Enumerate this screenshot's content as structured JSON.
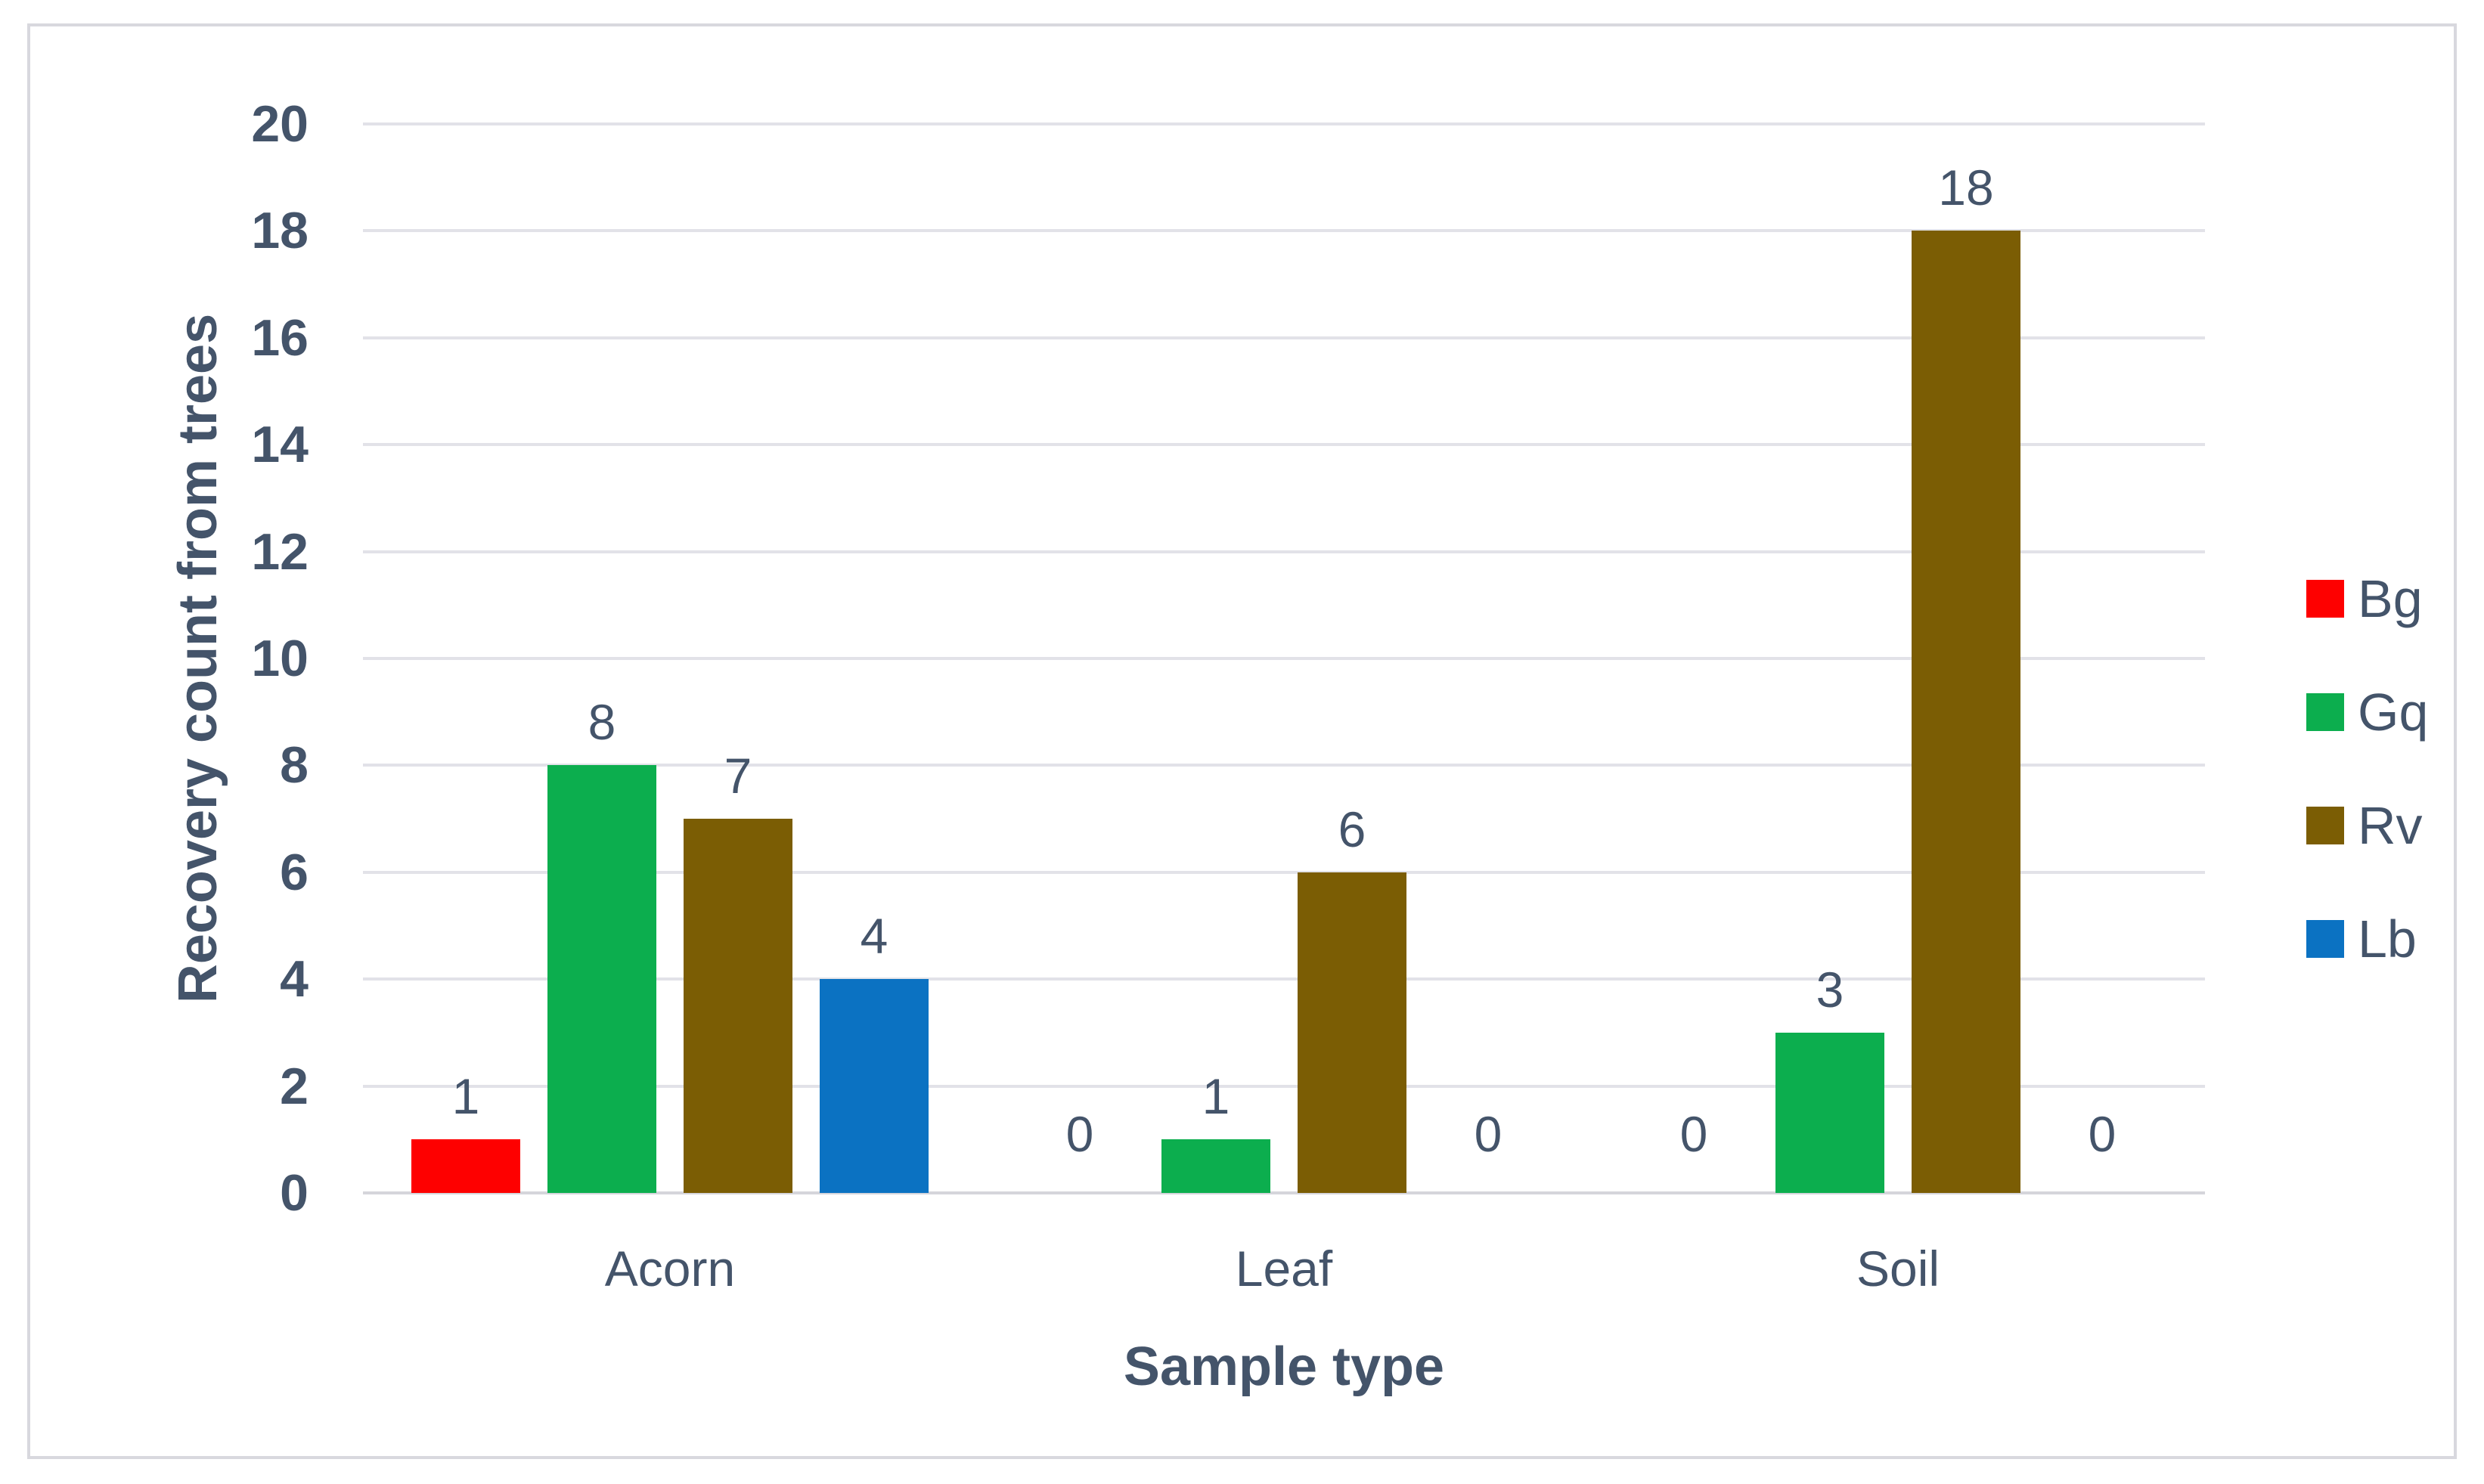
{
  "chart_data": {
    "type": "bar",
    "title": "",
    "categories": [
      "Acorn",
      "Leaf",
      "Soil"
    ],
    "series": [
      {
        "name": "Bg",
        "color": "#fe0000",
        "values": [
          1,
          0,
          0
        ]
      },
      {
        "name": "Gq",
        "color": "#0cae4e",
        "values": [
          8,
          1,
          3
        ]
      },
      {
        "name": "Rv",
        "color": "#7b5d04",
        "values": [
          7,
          6,
          18
        ]
      },
      {
        "name": "Lb",
        "color": "#0b72c2",
        "values": [
          4,
          0,
          0
        ]
      }
    ],
    "xlabel": "Sample type",
    "ylabel": "Recovery count from trees",
    "ylim": [
      0,
      20
    ],
    "yticks": [
      0,
      2,
      4,
      6,
      8,
      10,
      12,
      14,
      16,
      18,
      20
    ],
    "grid": true,
    "gridline_color": "#e2e2e8",
    "axis_line_color": "#d5d5db",
    "frame_border_color": "#d8d8de",
    "text_color": "#44546a",
    "legend_position": "right",
    "legend_labels": [
      "Bg",
      "Gq",
      "Rv",
      "Lb"
    ],
    "data_labels": true
  }
}
